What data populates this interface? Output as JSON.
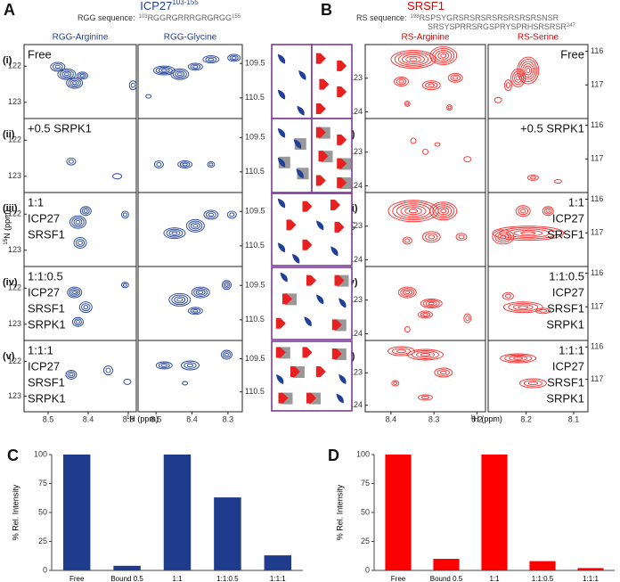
{
  "panel_a": {
    "label": "A",
    "title": "ICP27",
    "title_sup": "103-155",
    "sequence": {
      "label": "RGG sequence:",
      "start": "103",
      "lines": [
        "RGGRGRRRGRGRGG"
      ],
      "end": "155"
    },
    "spectra": [
      {
        "header": "RGG-Arginine",
        "xlim": [
          8.56,
          8.28
        ],
        "xticks": [
          8.5,
          8.4,
          8.3
        ],
        "ylim": [
          121.4,
          123.45
        ],
        "yticks": [
          122,
          123
        ]
      },
      {
        "header": "RGG-Glycine",
        "xlim": [
          8.55,
          8.26
        ],
        "xticks": [
          8.5,
          8.4,
          8.3
        ],
        "ylim": [
          108.95,
          111.1
        ],
        "yticks": [
          109.5,
          110.5
        ]
      }
    ],
    "x_axis_label": {
      "sup": "1",
      "text": "H (ppm)"
    },
    "y_axis_label": {
      "sup": "15",
      "text": "N (ppm)"
    }
  },
  "panel_b": {
    "label": "B",
    "title": "SRSF1",
    "sequence": {
      "label": "RS sequence:",
      "start": "198",
      "lines": [
        "RSPSYGRSRSRSRSRSRSRSRSNSR",
        "SRSYSPRRSRGSPRYSPRHSRSRSR"
      ],
      "end": "247"
    },
    "spectra": [
      {
        "header": "RS-Arginine",
        "xlim": [
          8.46,
          8.18
        ],
        "xticks": [
          8.4,
          8.3,
          8.2
        ],
        "ylim": [
          122.0,
          124.2
        ],
        "yticks": [
          123,
          124
        ]
      },
      {
        "header": "RS-Serine",
        "xlim": [
          8.28,
          8.07
        ],
        "xticks": [
          8.2,
          8.1
        ],
        "ylim": [
          115.8,
          118.0
        ],
        "yticks": [
          116,
          117
        ]
      }
    ],
    "x_axis_label": {
      "sup": "1",
      "text": "H (ppm)"
    },
    "y_axis_label": {
      "sup": "15",
      "text": "N (ppm)"
    }
  },
  "rows": [
    {
      "label": "(i)",
      "condition": [
        "Free"
      ]
    },
    {
      "label": "(ii)",
      "condition": [
        "+0.5 SRPK1"
      ]
    },
    {
      "label": "(iii)",
      "condition": [
        "1:1",
        "ICP27",
        "SRSF1"
      ]
    },
    {
      "label": "(iv)",
      "condition": [
        "1:1:0.5",
        "ICP27",
        "SRSF1",
        "SRPK1"
      ]
    },
    {
      "label": "(v)",
      "condition": [
        "1:1:1",
        "ICP27",
        "SRSF1",
        "SRPK1"
      ]
    }
  ],
  "chart_data": [
    {
      "type": "bar",
      "label": "C",
      "ylabel": "% Rel. Intensity",
      "categories": [
        "Free",
        "Bound 0.5",
        "1:1",
        "1:1:0.5",
        "1:1:1"
      ],
      "values": [
        100,
        4,
        100,
        63,
        13
      ],
      "color": "#1f3c8c",
      "ylim": [
        0,
        100
      ],
      "yticks": [
        0,
        25,
        50,
        75,
        100
      ]
    },
    {
      "type": "bar",
      "label": "D",
      "ylabel": "% Rel. Intensity",
      "categories": [
        "Free",
        "Bound 0.5",
        "1:1",
        "1:1:0.5",
        "1:1:1"
      ],
      "values": [
        100,
        10,
        100,
        8,
        2
      ],
      "color": "#ff0000",
      "ylim": [
        0,
        100
      ],
      "yticks": [
        0,
        25,
        50,
        75,
        100
      ]
    }
  ]
}
